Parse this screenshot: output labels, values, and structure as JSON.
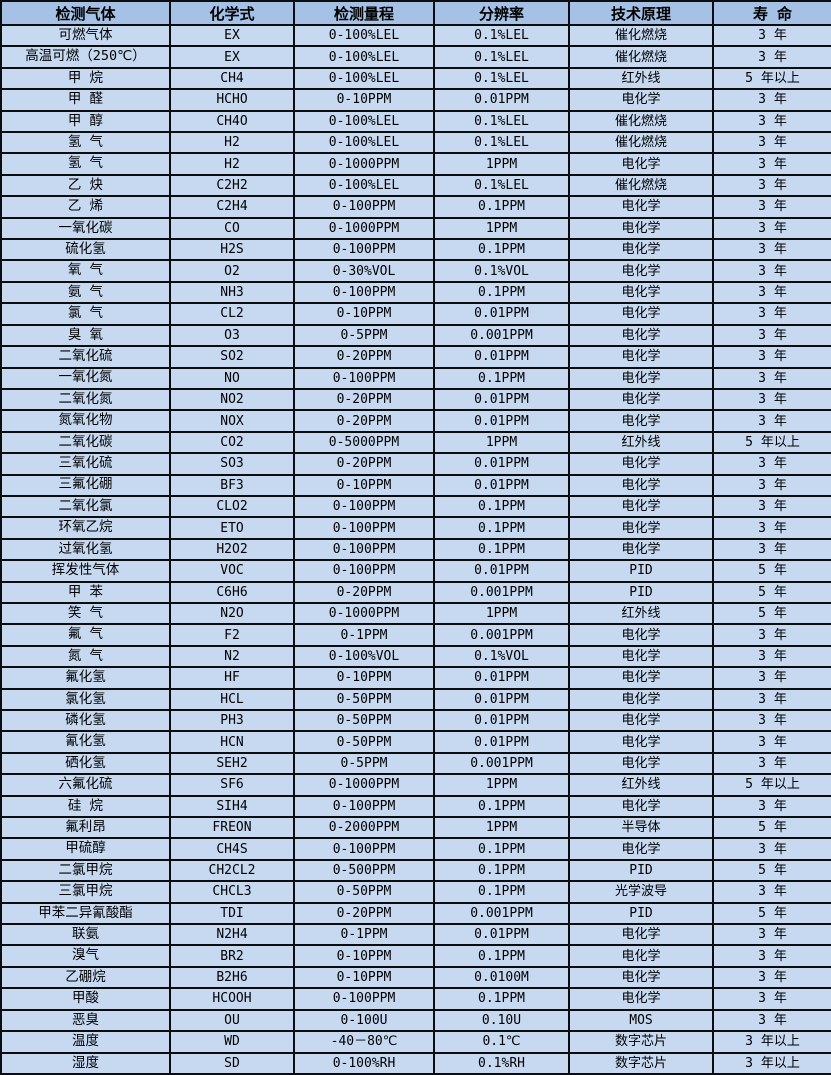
{
  "table": {
    "title_semantic": "gas-detector-specification-table",
    "colors": {
      "header_bg": "#a5c2e6",
      "row_bg": "#c6d9f1",
      "border": "#0d0d0d",
      "text": "#000000"
    },
    "columns": [
      "检测气体",
      "化学式",
      "检测量程",
      "分辨率",
      "技术原理",
      "寿 命"
    ],
    "rows": [
      [
        "可燃气体",
        "EX",
        "0-100%LEL",
        "0.1%LEL",
        "催化燃烧",
        "3 年"
      ],
      [
        "高温可燃（250℃）",
        "EX",
        "0-100%LEL",
        "0.1%LEL",
        "催化燃烧",
        "3 年"
      ],
      [
        "甲 烷",
        "CH4",
        "0-100%LEL",
        "0.1%LEL",
        "红外线",
        "5 年以上"
      ],
      [
        "甲 醛",
        "HCHO",
        "0-10PPM",
        "0.01PPM",
        "电化学",
        "3 年"
      ],
      [
        "甲 醇",
        "CH4O",
        "0-100%LEL",
        "0.1%LEL",
        "催化燃烧",
        "3 年"
      ],
      [
        "氢 气",
        "H2",
        "0-100%LEL",
        "0.1%LEL",
        "催化燃烧",
        "3 年"
      ],
      [
        "氢 气",
        "H2",
        "0-1000PPM",
        "1PPM",
        "电化学",
        "3 年"
      ],
      [
        "乙 炔",
        "C2H2",
        "0-100%LEL",
        "0.1%LEL",
        "催化燃烧",
        "3 年"
      ],
      [
        "乙 烯",
        "C2H4",
        "0-100PPM",
        "0.1PPM",
        "电化学",
        "3 年"
      ],
      [
        "一氧化碳",
        "CO",
        "0-1000PPM",
        "1PPM",
        "电化学",
        "3 年"
      ],
      [
        "硫化氢",
        "H2S",
        "0-100PPM",
        "0.1PPM",
        "电化学",
        "3 年"
      ],
      [
        "氧 气",
        "O2",
        "0-30%VOL",
        "0.1%VOL",
        "电化学",
        "3 年"
      ],
      [
        "氨 气",
        "NH3",
        "0-100PPM",
        "0.1PPM",
        "电化学",
        "3 年"
      ],
      [
        "氯 气",
        "CL2",
        "0-10PPM",
        "0.01PPM",
        "电化学",
        "3 年"
      ],
      [
        "臭 氧",
        "O3",
        "0-5PPM",
        "0.001PPM",
        "电化学",
        "3 年"
      ],
      [
        "二氧化硫",
        "SO2",
        "0-20PPM",
        "0.01PPM",
        "电化学",
        "3 年"
      ],
      [
        "一氧化氮",
        "NO",
        "0-100PPM",
        "0.1PPM",
        "电化学",
        "3 年"
      ],
      [
        "二氧化氮",
        "NO2",
        "0-20PPM",
        "0.01PPM",
        "电化学",
        "3 年"
      ],
      [
        "氮氧化物",
        "NOX",
        "0-20PPM",
        "0.01PPM",
        "电化学",
        "3 年"
      ],
      [
        "二氧化碳",
        "CO2",
        "0-5000PPM",
        "1PPM",
        "红外线",
        "5 年以上"
      ],
      [
        "三氧化硫",
        "SO3",
        "0-20PPM",
        "0.01PPM",
        "电化学",
        "3 年"
      ],
      [
        "三氟化硼",
        "BF3",
        "0-10PPM",
        "0.01PPM",
        "电化学",
        "3 年"
      ],
      [
        "二氧化氯",
        "CLO2",
        "0-100PPM",
        "0.1PPM",
        "电化学",
        "3 年"
      ],
      [
        "环氧乙烷",
        "ETO",
        "0-100PPM",
        "0.1PPM",
        "电化学",
        "3 年"
      ],
      [
        "过氧化氢",
        "H2O2",
        "0-100PPM",
        "0.1PPM",
        "电化学",
        "3 年"
      ],
      [
        "挥发性气体",
        "VOC",
        "0-100PPM",
        "0.01PPM",
        "PID",
        "5 年"
      ],
      [
        "甲 苯",
        "C6H6",
        "0-20PPM",
        "0.001PPM",
        "PID",
        "5 年"
      ],
      [
        "笑 气",
        "N2O",
        "0-1000PPM",
        "1PPM",
        "红外线",
        "5 年"
      ],
      [
        "氟 气",
        "F2",
        "0-1PPM",
        "0.001PPM",
        "电化学",
        "3 年"
      ],
      [
        "氮 气",
        "N2",
        "0-100%VOL",
        "0.1%VOL",
        "电化学",
        "3 年"
      ],
      [
        "氟化氢",
        "HF",
        "0-10PPM",
        "0.01PPM",
        "电化学",
        "3 年"
      ],
      [
        "氯化氢",
        "HCL",
        "0-50PPM",
        "0.01PPM",
        "电化学",
        "3 年"
      ],
      [
        "磷化氢",
        "PH3",
        "0-50PPM",
        "0.01PPM",
        "电化学",
        "3 年"
      ],
      [
        "氰化氢",
        "HCN",
        "0-50PPM",
        "0.01PPM",
        "电化学",
        "3 年"
      ],
      [
        "硒化氢",
        "SEH2",
        "0-5PPM",
        "0.001PPM",
        "电化学",
        "3 年"
      ],
      [
        "六氟化硫",
        "SF6",
        "0-1000PPM",
        "1PPM",
        "红外线",
        "5 年以上"
      ],
      [
        "硅 烷",
        "SIH4",
        "0-100PPM",
        "0.1PPM",
        "电化学",
        "3 年"
      ],
      [
        "氟利昂",
        "FREON",
        "0-2000PPM",
        "1PPM",
        "半导体",
        "5 年"
      ],
      [
        "甲硫醇",
        "CH4S",
        "0-100PPM",
        "0.1PPM",
        "电化学",
        "3 年"
      ],
      [
        "二氯甲烷",
        "CH2CL2",
        "0-500PPM",
        "0.1PPM",
        "PID",
        "5 年"
      ],
      [
        "三氯甲烷",
        "CHCL3",
        "0-50PPM",
        "0.1PPM",
        "光学波导",
        "3 年"
      ],
      [
        "甲苯二异氰酸酯",
        "TDI",
        "0-20PPM",
        "0.001PPM",
        "PID",
        "5 年"
      ],
      [
        "联氨",
        "N2H4",
        "0-1PPM",
        "0.01PPM",
        "电化学",
        "3 年"
      ],
      [
        "溴气",
        "BR2",
        "0-10PPM",
        "0.1PPM",
        "电化学",
        "3 年"
      ],
      [
        "乙硼烷",
        "B2H6",
        "0-10PPM",
        "0.0100M",
        "电化学",
        "3 年"
      ],
      [
        "甲酸",
        "HCOOH",
        "0-100PPM",
        "0.1PPM",
        "电化学",
        "3 年"
      ],
      [
        "恶臭",
        "OU",
        "0-100U",
        "0.10U",
        "MOS",
        "3 年"
      ],
      [
        "温度",
        "WD",
        "-40－80℃",
        "0.1℃",
        "数字芯片",
        "3 年以上"
      ],
      [
        "湿度",
        "SD",
        "0-100%RH",
        "0.1%RH",
        "数字芯片",
        "3 年以上"
      ]
    ]
  }
}
